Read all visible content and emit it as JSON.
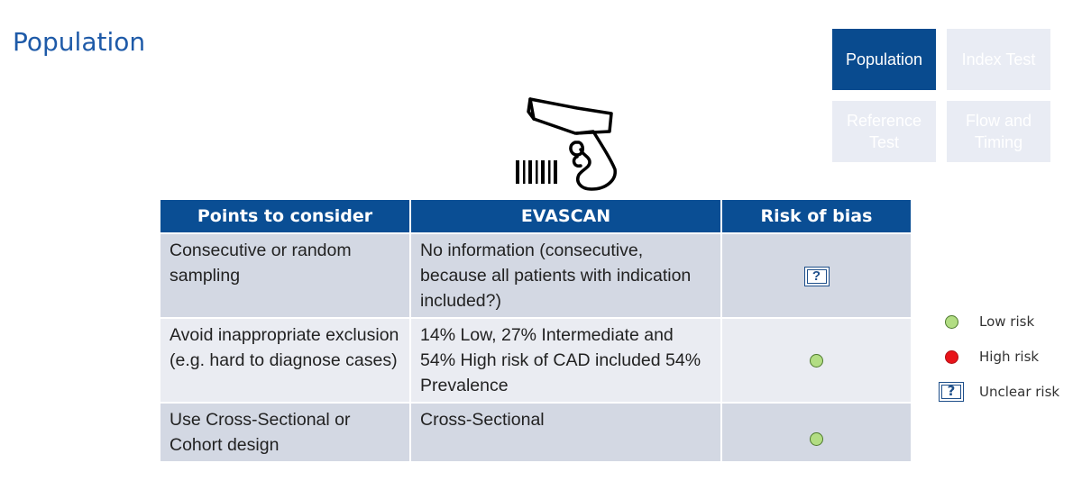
{
  "title": "Population",
  "nav": {
    "population": "Population",
    "index_test": "Index Test",
    "reference_test": "Reference\nTest",
    "flow_timing": "Flow and\nTiming"
  },
  "table": {
    "headers": [
      "Points to consider",
      "EVASCAN",
      "Risk of bias"
    ],
    "rows": [
      {
        "point": "Consecutive or random sampling",
        "evascan": "No information (consecutive, because all patients with indication included?)",
        "risk": "unclear",
        "risk_symbol": "?"
      },
      {
        "point": "Avoid inappropriate exclusion (e.g. hard to diagnose cases)",
        "evascan": "14% Low, 27% Intermediate and 54% High risk of CAD included 54% Prevalence",
        "risk": "low"
      },
      {
        "point": "Use Cross-Sectional or Cohort design",
        "evascan": "Cross-Sectional",
        "risk": "low"
      }
    ]
  },
  "legend": {
    "low": "Low risk",
    "high": "High risk",
    "unclear": "Unclear risk",
    "unclear_symbol": "?"
  },
  "colors": {
    "accent": "#094b8f",
    "low_risk": "#b2dd83",
    "high_risk": "#e8141a"
  }
}
